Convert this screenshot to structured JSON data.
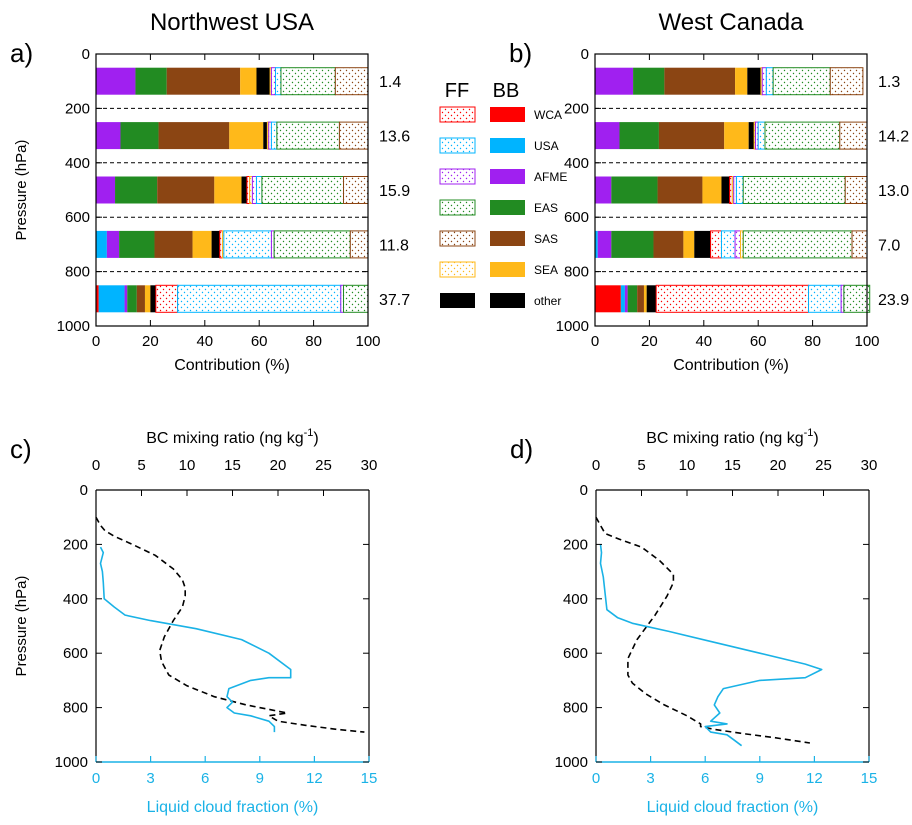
{
  "colors": {
    "WCA": "#ff0000",
    "USA": "#00b4ff",
    "AFME": "#a020f0",
    "EAS": "#228b22",
    "SAS": "#8b4513",
    "SEA": "#ffb91a",
    "other": "#000000",
    "cloud": "#1ab2e6",
    "bc": "#000000"
  },
  "legend": {
    "ff_header": "FF",
    "bb_header": "BB",
    "items": [
      {
        "key": "WCA",
        "label": "WCA"
      },
      {
        "key": "USA",
        "label": "USA"
      },
      {
        "key": "AFME",
        "label": "AFME"
      },
      {
        "key": "EAS",
        "label": "EAS"
      },
      {
        "key": "SAS",
        "label": "SAS"
      },
      {
        "key": "SEA",
        "label": "SEA"
      },
      {
        "key": "other",
        "label": "other"
      }
    ]
  },
  "chart_data": [
    {
      "type": "bar",
      "stacked": true,
      "orientation": "horizontal",
      "panel_label": "a)",
      "title": "Northwest USA",
      "xlabel": "Contribution (%)",
      "ylabel": "Pressure (hPa)",
      "xlim": [
        0,
        100
      ],
      "ylim": [
        1000,
        0
      ],
      "xticks": [
        0,
        20,
        40,
        60,
        80,
        100
      ],
      "yticks": [
        0,
        200,
        400,
        600,
        800,
        1000
      ],
      "gridlines_y": [
        200,
        400,
        600,
        800
      ],
      "levels": [
        100,
        300,
        500,
        700,
        900
      ],
      "totals": [
        "1.4",
        "13.6",
        "15.9",
        "11.8",
        "37.7"
      ],
      "bars": [
        {
          "level": 100,
          "segments": [
            [
              "BB",
              "AFME",
              14.5
            ],
            [
              "BB",
              "EAS",
              11.5
            ],
            [
              "BB",
              "SAS",
              27
            ],
            [
              "BB",
              "SEA",
              6
            ],
            [
              "BB",
              "other",
              5
            ],
            [
              "FF",
              "SEA",
              0.5
            ],
            [
              "FF",
              "AFME",
              1.5
            ],
            [
              "FF",
              "USA",
              2
            ],
            [
              "FF",
              "EAS",
              20
            ],
            [
              "FF",
              "SAS",
              12
            ]
          ]
        },
        {
          "level": 300,
          "segments": [
            [
              "BB",
              "AFME",
              9
            ],
            [
              "BB",
              "EAS",
              14
            ],
            [
              "BB",
              "SAS",
              26
            ],
            [
              "BB",
              "SEA",
              12.5
            ],
            [
              "BB",
              "other",
              1.5
            ],
            [
              "FF",
              "SEA",
              0.5
            ],
            [
              "FF",
              "AFME",
              1
            ],
            [
              "FF",
              "USA",
              2
            ],
            [
              "FF",
              "EAS",
              23
            ],
            [
              "FF",
              "SAS",
              10.5
            ]
          ]
        },
        {
          "level": 500,
          "segments": [
            [
              "BB",
              "AFME",
              7
            ],
            [
              "BB",
              "EAS",
              15.5
            ],
            [
              "BB",
              "SAS",
              21
            ],
            [
              "BB",
              "SEA",
              10
            ],
            [
              "BB",
              "other",
              2
            ],
            [
              "FF",
              "WCA",
              1
            ],
            [
              "FF",
              "SEA",
              1
            ],
            [
              "FF",
              "AFME",
              1.5
            ],
            [
              "FF",
              "USA",
              2
            ],
            [
              "FF",
              "EAS",
              30
            ],
            [
              "FF",
              "SAS",
              9
            ]
          ]
        },
        {
          "level": 700,
          "segments": [
            [
              "BB",
              "USA",
              4
            ],
            [
              "BB",
              "AFME",
              4.5
            ],
            [
              "BB",
              "EAS",
              13
            ],
            [
              "BB",
              "SAS",
              14
            ],
            [
              "BB",
              "SEA",
              7
            ],
            [
              "BB",
              "other",
              3
            ],
            [
              "FF",
              "WCA",
              1
            ],
            [
              "FF",
              "SEA",
              0.5
            ],
            [
              "FF",
              "USA",
              17.5
            ],
            [
              "FF",
              "AFME",
              1
            ],
            [
              "FF",
              "EAS",
              28
            ],
            [
              "FF",
              "SAS",
              6.5
            ]
          ]
        },
        {
          "level": 900,
          "segments": [
            [
              "BB",
              "WCA",
              1
            ],
            [
              "BB",
              "USA",
              9.5
            ],
            [
              "BB",
              "AFME",
              1
            ],
            [
              "BB",
              "EAS",
              3.5
            ],
            [
              "BB",
              "SAS",
              3
            ],
            [
              "BB",
              "SEA",
              2
            ],
            [
              "BB",
              "other",
              2
            ],
            [
              "FF",
              "WCA",
              8
            ],
            [
              "FF",
              "USA",
              60
            ],
            [
              "FF",
              "AFME",
              1
            ],
            [
              "FF",
              "EAS",
              9
            ]
          ]
        }
      ]
    },
    {
      "type": "bar",
      "stacked": true,
      "orientation": "horizontal",
      "panel_label": "b)",
      "title": "West Canada",
      "xlabel": "Contribution (%)",
      "ylabel": "",
      "xlim": [
        0,
        100
      ],
      "ylim": [
        1000,
        0
      ],
      "xticks": [
        0,
        20,
        40,
        60,
        80,
        100
      ],
      "yticks": [
        0,
        200,
        400,
        600,
        800,
        1000
      ],
      "gridlines_y": [
        200,
        400,
        600,
        800
      ],
      "levels": [
        100,
        300,
        500,
        700,
        900
      ],
      "totals": [
        "1.3",
        "14.2",
        "13.0",
        "7.0",
        "23.9"
      ],
      "bars": [
        {
          "level": 100,
          "segments": [
            [
              "BB",
              "AFME",
              14
            ],
            [
              "BB",
              "EAS",
              11.5
            ],
            [
              "BB",
              "SAS",
              26
            ],
            [
              "BB",
              "SEA",
              4.5
            ],
            [
              "BB",
              "other",
              5
            ],
            [
              "FF",
              "SEA",
              0.5
            ],
            [
              "FF",
              "AFME",
              1.5
            ],
            [
              "FF",
              "USA",
              2.5
            ],
            [
              "FF",
              "EAS",
              21
            ],
            [
              "FF",
              "SAS",
              12
            ]
          ]
        },
        {
          "level": 300,
          "segments": [
            [
              "BB",
              "AFME",
              9
            ],
            [
              "BB",
              "EAS",
              14.5
            ],
            [
              "BB",
              "SAS",
              24
            ],
            [
              "BB",
              "SEA",
              9
            ],
            [
              "BB",
              "other",
              2
            ],
            [
              "FF",
              "SEA",
              0.5
            ],
            [
              "FF",
              "AFME",
              1
            ],
            [
              "FF",
              "USA",
              2.5
            ],
            [
              "FF",
              "EAS",
              27.5
            ],
            [
              "FF",
              "SAS",
              10
            ]
          ]
        },
        {
          "level": 500,
          "segments": [
            [
              "BB",
              "AFME",
              6
            ],
            [
              "BB",
              "EAS",
              17
            ],
            [
              "BB",
              "SAS",
              16.5
            ],
            [
              "BB",
              "SEA",
              7
            ],
            [
              "BB",
              "other",
              3
            ],
            [
              "FF",
              "WCA",
              1
            ],
            [
              "FF",
              "SEA",
              0.5
            ],
            [
              "FF",
              "AFME",
              1
            ],
            [
              "FF",
              "USA",
              2.5
            ],
            [
              "FF",
              "EAS",
              37.5
            ],
            [
              "FF",
              "SAS",
              8
            ]
          ]
        },
        {
          "level": 700,
          "segments": [
            [
              "BB",
              "USA",
              1
            ],
            [
              "BB",
              "AFME",
              5
            ],
            [
              "BB",
              "EAS",
              15.5
            ],
            [
              "BB",
              "SAS",
              11
            ],
            [
              "BB",
              "SEA",
              4
            ],
            [
              "BB",
              "other",
              6
            ],
            [
              "FF",
              "WCA",
              4
            ],
            [
              "FF",
              "USA",
              5
            ],
            [
              "FF",
              "AFME",
              2
            ],
            [
              "FF",
              "SEA",
              1
            ],
            [
              "FF",
              "EAS",
              40
            ],
            [
              "FF",
              "SAS",
              5.5
            ]
          ]
        },
        {
          "level": 900,
          "segments": [
            [
              "BB",
              "WCA",
              9.5
            ],
            [
              "BB",
              "USA",
              1.5
            ],
            [
              "BB",
              "AFME",
              1
            ],
            [
              "BB",
              "EAS",
              3.5
            ],
            [
              "BB",
              "SAS",
              2.5
            ],
            [
              "BB",
              "SEA",
              1
            ],
            [
              "BB",
              "other",
              3.5
            ],
            [
              "FF",
              "WCA",
              56
            ],
            [
              "FF",
              "USA",
              12
            ],
            [
              "FF",
              "AFME",
              1
            ],
            [
              "FF",
              "EAS",
              9.5
            ]
          ]
        }
      ]
    },
    {
      "type": "line",
      "panel_label": "c)",
      "top_xlabel_prefix": "BC mixing ratio (ng kg",
      "top_xlabel_exp": "-1",
      "top_xlabel_suffix": ")",
      "bottom_xlabel": "Liquid cloud fraction (%)",
      "ylabel": "Pressure (hPa)",
      "ylim": [
        1000,
        0
      ],
      "yticks": [
        0,
        200,
        400,
        600,
        800,
        1000
      ],
      "top_xlim": [
        0,
        30
      ],
      "top_xticks": [
        0,
        5,
        10,
        15,
        20,
        25,
        30
      ],
      "bottom_xlim": [
        0,
        15
      ],
      "bottom_xticks": [
        0,
        3,
        6,
        9,
        12,
        15
      ],
      "series": [
        {
          "key": "bc",
          "axis": "top",
          "style": "dashed",
          "x": [
            0,
            0.5,
            1,
            2,
            4,
            6.5,
            8.5,
            9.5,
            9.8,
            9.8,
            9.5,
            8.5,
            7.5,
            7,
            7.2,
            8,
            10,
            13,
            16.5,
            19.5,
            21,
            19,
            20,
            23,
            26.5,
            29.5
          ],
          "y": [
            100,
            130,
            150,
            170,
            200,
            240,
            290,
            330,
            360,
            390,
            430,
            480,
            540,
            590,
            630,
            680,
            720,
            760,
            790,
            810,
            820,
            830,
            850,
            865,
            880,
            890
          ]
        },
        {
          "key": "cloud",
          "axis": "bottom",
          "style": "solid",
          "x": [
            0.25,
            0.4,
            0.25,
            0.35,
            0.4,
            0.45,
            1,
            1.6,
            3,
            5.5,
            8,
            9.5,
            10.7,
            10.7,
            9.5,
            8.5,
            7.3,
            7.2,
            7.5,
            7.2,
            7.6,
            8.5,
            9.5,
            9.8,
            9.8
          ],
          "y": [
            210,
            230,
            270,
            300,
            340,
            400,
            430,
            460,
            480,
            510,
            550,
            600,
            660,
            690,
            690,
            700,
            730,
            760,
            780,
            800,
            820,
            830,
            850,
            870,
            890
          ]
        }
      ]
    },
    {
      "type": "line",
      "panel_label": "d)",
      "top_xlabel_prefix": "BC mixing ratio (ng kg",
      "top_xlabel_exp": "-1",
      "top_xlabel_suffix": ")",
      "bottom_xlabel": "Liquid cloud fraction (%)",
      "ylabel": "",
      "ylim": [
        1000,
        0
      ],
      "yticks": [
        0,
        200,
        400,
        600,
        800,
        1000
      ],
      "top_xlim": [
        0,
        30
      ],
      "top_xticks": [
        0,
        5,
        10,
        15,
        20,
        25,
        30
      ],
      "bottom_xlim": [
        0,
        15
      ],
      "bottom_xticks": [
        0,
        3,
        6,
        9,
        12,
        15
      ],
      "series": [
        {
          "key": "bc",
          "axis": "top",
          "style": "dashed",
          "x": [
            0,
            0.5,
            1,
            2.5,
            5,
            7,
            8.5,
            8.5,
            7.8,
            6.5,
            4.5,
            3.5,
            3.5,
            4,
            5.5,
            7.5,
            10,
            11.5,
            11.5,
            13,
            16,
            19.5,
            23.5
          ],
          "y": [
            100,
            130,
            160,
            180,
            210,
            260,
            310,
            340,
            390,
            460,
            550,
            620,
            680,
            710,
            750,
            790,
            830,
            860,
            870,
            880,
            895,
            910,
            930
          ]
        },
        {
          "key": "cloud",
          "axis": "bottom",
          "style": "solid",
          "x": [
            0.25,
            0.3,
            0.25,
            0.4,
            0.5,
            0.6,
            1.2,
            2,
            4,
            6.5,
            9,
            11.5,
            12.4,
            11.5,
            9,
            7,
            6.7,
            6.5,
            6.8,
            6.3,
            7.2,
            6,
            6.3,
            7.2,
            7.6,
            8
          ],
          "y": [
            200,
            230,
            270,
            320,
            380,
            440,
            470,
            490,
            520,
            560,
            600,
            640,
            660,
            690,
            700,
            730,
            760,
            790,
            820,
            850,
            860,
            870,
            890,
            900,
            920,
            940
          ]
        }
      ]
    }
  ]
}
